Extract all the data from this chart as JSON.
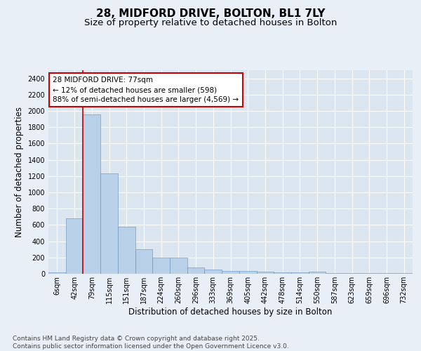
{
  "title_line1": "28, MIDFORD DRIVE, BOLTON, BL1 7LY",
  "title_line2": "Size of property relative to detached houses in Bolton",
  "xlabel": "Distribution of detached houses by size in Bolton",
  "ylabel": "Number of detached properties",
  "categories": [
    "6sqm",
    "42sqm",
    "79sqm",
    "115sqm",
    "151sqm",
    "187sqm",
    "224sqm",
    "260sqm",
    "296sqm",
    "333sqm",
    "369sqm",
    "405sqm",
    "442sqm",
    "478sqm",
    "514sqm",
    "550sqm",
    "587sqm",
    "623sqm",
    "659sqm",
    "696sqm",
    "732sqm"
  ],
  "values": [
    15,
    680,
    1960,
    1230,
    580,
    305,
    200,
    195,
    80,
    48,
    35,
    35,
    30,
    15,
    15,
    25,
    8,
    5,
    5,
    5,
    10
  ],
  "bar_color": "#b8d0e8",
  "bar_edge_color": "#6090c0",
  "bg_color": "#dce6f0",
  "grid_color": "#ffffff",
  "fig_bg_color": "#e8eff7",
  "annotation_box_color": "#cc0000",
  "annotation_text": "28 MIDFORD DRIVE: 77sqm\n← 12% of detached houses are smaller (598)\n88% of semi-detached houses are larger (4,569) →",
  "ylim": [
    0,
    2500
  ],
  "yticks": [
    0,
    200,
    400,
    600,
    800,
    1000,
    1200,
    1400,
    1600,
    1800,
    2000,
    2200,
    2400
  ],
  "footer": "Contains HM Land Registry data © Crown copyright and database right 2025.\nContains public sector information licensed under the Open Government Licence v3.0.",
  "title_fontsize": 11,
  "subtitle_fontsize": 9.5,
  "axis_label_fontsize": 8.5,
  "tick_fontsize": 7,
  "annotation_fontsize": 7.5,
  "footer_fontsize": 6.5
}
